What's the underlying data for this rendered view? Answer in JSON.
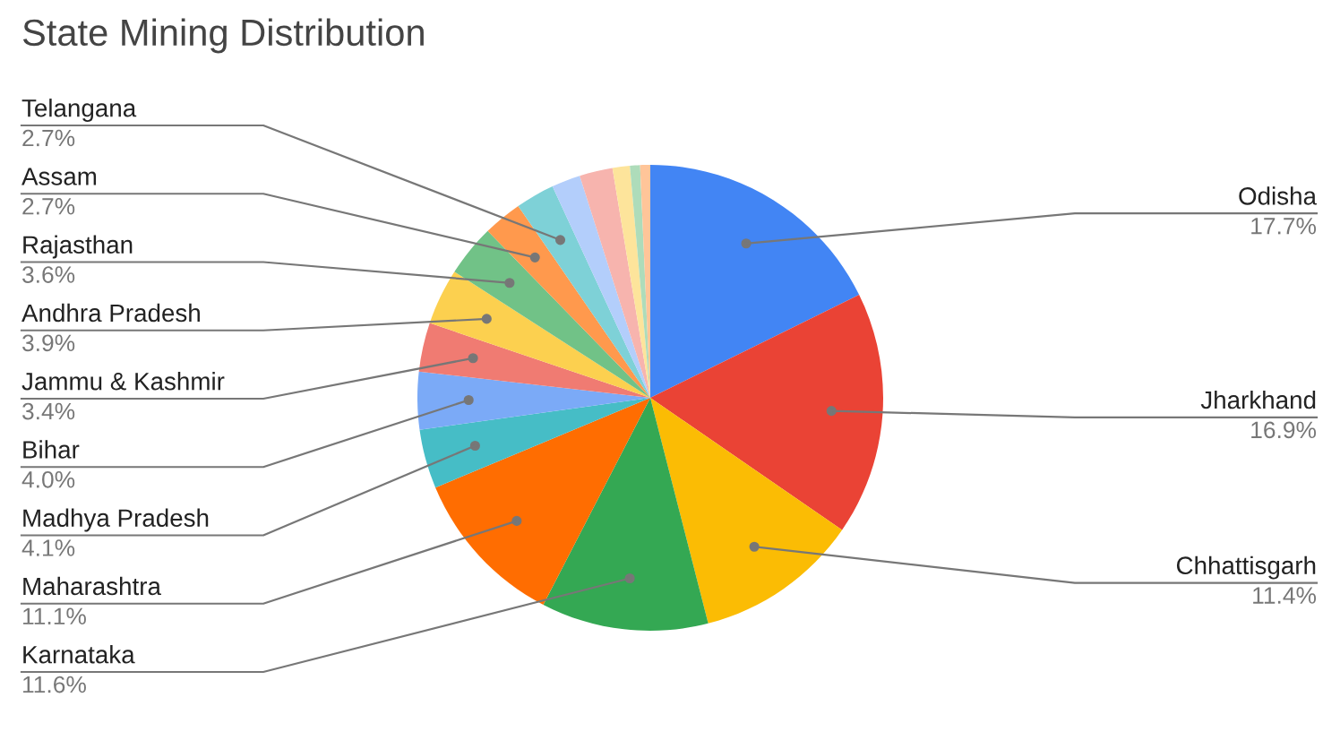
{
  "chart_data": {
    "type": "pie",
    "title": "State Mining Distribution",
    "categories": [
      "Odisha",
      "Jharkhand",
      "Chhattisgarh",
      "Karnataka",
      "Maharashtra",
      "Madhya Pradesh",
      "Bihar",
      "Jammu & Kashmir",
      "Andhra Pradesh",
      "Rajasthan",
      "Assam",
      "Telangana",
      null,
      null,
      null,
      null,
      null
    ],
    "values": [
      17.7,
      16.9,
      11.4,
      11.6,
      11.1,
      4.1,
      4.0,
      3.4,
      3.9,
      3.6,
      2.7,
      2.7,
      2.0,
      2.3,
      1.2,
      0.7,
      0.7
    ],
    "colors": [
      "#4285f4",
      "#ea4335",
      "#fbbc04",
      "#34a853",
      "#ff6d01",
      "#46bdc6",
      "#7baaf7",
      "#f07b72",
      "#fcd04f",
      "#71c287",
      "#ff994d",
      "#7ed1d7",
      "#b3cefb",
      "#f7b4ae",
      "#fde49b",
      "#aedcba",
      "#ffc599"
    ],
    "value_labels": [
      "17.7%",
      "16.9%",
      "11.4%",
      "11.6%",
      "11.1%",
      "4.1%",
      "4.0%",
      "3.4%",
      "3.9%",
      "3.6%",
      "2.7%",
      "2.7%",
      null,
      null,
      null,
      null,
      null
    ],
    "legend": false
  }
}
